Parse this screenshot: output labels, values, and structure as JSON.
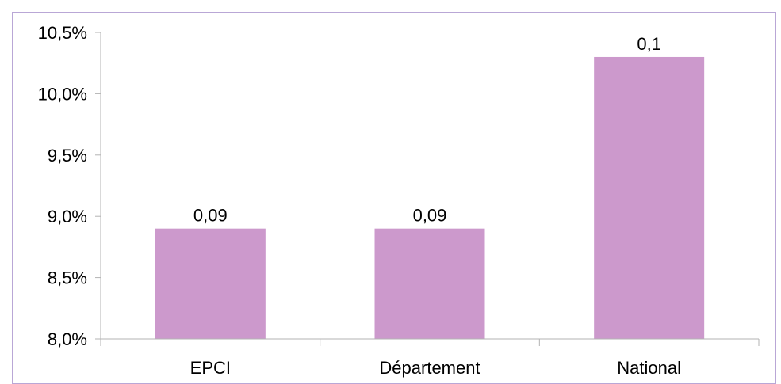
{
  "chart_data": {
    "type": "bar",
    "title": "",
    "xlabel": "",
    "ylabel": "",
    "categories": [
      "EPCI",
      "Département",
      "National"
    ],
    "values": [
      8.9,
      8.9,
      10.3
    ],
    "data_labels": [
      "0,09",
      "0,09",
      "0,1"
    ],
    "ylim": [
      8.0,
      10.5
    ],
    "yticks": [
      8.0,
      8.5,
      9.0,
      9.5,
      10.0,
      10.5
    ],
    "ytick_labels": [
      "8,0%",
      "8,5%",
      "9,0%",
      "9,5%",
      "10,0%",
      "10,5%"
    ],
    "grid": false,
    "legend": "none",
    "bar_color": "#cc99cc",
    "axis_color": "#b3b3b3",
    "frame_color": "#b9a7d6"
  }
}
